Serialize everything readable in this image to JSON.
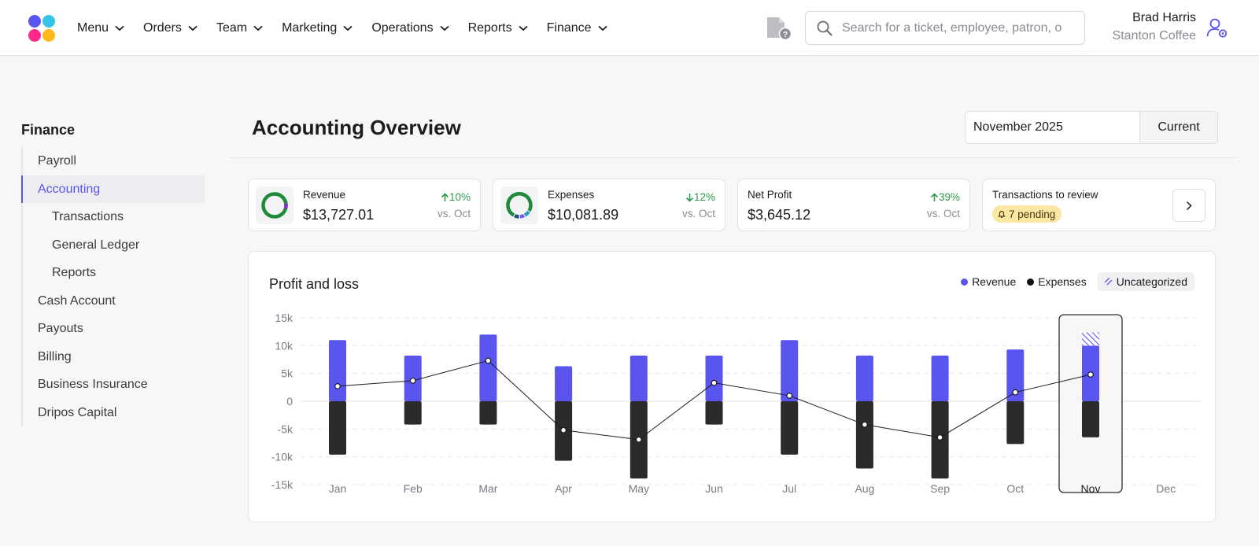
{
  "nav": {
    "items": [
      {
        "label": "Menu"
      },
      {
        "label": "Orders"
      },
      {
        "label": "Team"
      },
      {
        "label": "Marketing"
      },
      {
        "label": "Operations"
      },
      {
        "label": "Reports"
      },
      {
        "label": "Finance"
      }
    ],
    "search_placeholder": "Search for a ticket, employee, patron, or menu item",
    "user_name": "Brad Harris",
    "user_org": "Stanton Coffee"
  },
  "sidebar": {
    "title": "Finance",
    "items": [
      {
        "label": "Payroll",
        "level": 1
      },
      {
        "label": "Accounting",
        "level": 1,
        "active": true
      },
      {
        "label": "Transactions",
        "level": 2
      },
      {
        "label": "General Ledger",
        "level": 2
      },
      {
        "label": "Reports",
        "level": 2
      },
      {
        "label": "Cash Account",
        "level": 1
      },
      {
        "label": "Payouts",
        "level": 1
      },
      {
        "label": "Billing",
        "level": 1
      },
      {
        "label": "Business Insurance",
        "level": 1
      },
      {
        "label": "Dripos Capital",
        "level": 1
      }
    ]
  },
  "main": {
    "title": "Accounting Overview",
    "date_value": "November 2025",
    "date_button": "Current"
  },
  "cards": {
    "revenue": {
      "label": "Revenue",
      "value": "$13,727.01",
      "change": "10%",
      "vs": "vs. Oct"
    },
    "expenses": {
      "label": "Expenses",
      "value": "$10,081.89",
      "change": "12%",
      "vs": "vs. Oct"
    },
    "net_profit": {
      "label": "Net Profit",
      "value": "$3,645.12",
      "change": "39%",
      "vs": "vs. Oct"
    },
    "review": {
      "label": "Transactions to review",
      "pending": "7 pending"
    }
  },
  "colors": {
    "revenue": "#5b55f0",
    "expenses": "#2b2b2e",
    "positive": "#2e9a4d",
    "accent": "#5b55f0"
  },
  "chart_data": {
    "type": "bar",
    "title": "Profit and loss",
    "legend": [
      "Revenue",
      "Expenses",
      "Uncategorized"
    ],
    "categories": [
      "Jan",
      "Feb",
      "Mar",
      "Apr",
      "May",
      "Jun",
      "Jul",
      "Aug",
      "Sep",
      "Oct",
      "Nov",
      "Dec"
    ],
    "highlighted_category": "Nov",
    "y_ticks": [
      "15k",
      "10k",
      "5k",
      "0",
      "-5k",
      "-10k",
      "-15k"
    ],
    "ylim": [
      -15000,
      15000
    ],
    "series": [
      {
        "name": "Revenue",
        "values": [
          11000,
          8200,
          12000,
          6300,
          8200,
          8200,
          11000,
          8200,
          8200,
          9300,
          10000,
          null
        ]
      },
      {
        "name": "Expenses",
        "values": [
          -9600,
          -4200,
          -4200,
          -10700,
          -13900,
          -4200,
          -9600,
          -12100,
          -13900,
          -7700,
          -6500,
          null
        ]
      },
      {
        "name": "Net",
        "type": "line",
        "values": [
          2700,
          3700,
          7300,
          -5200,
          -6900,
          3300,
          1000,
          -4200,
          -6500,
          1600,
          4800,
          null
        ]
      },
      {
        "name": "Uncategorized",
        "values": [
          null,
          null,
          null,
          null,
          null,
          null,
          null,
          null,
          null,
          null,
          2400,
          -1500
        ]
      }
    ]
  }
}
